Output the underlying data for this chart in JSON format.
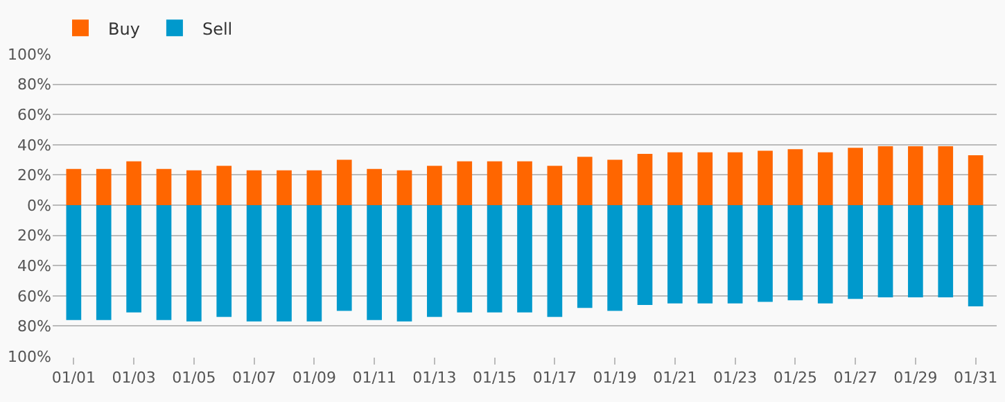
{
  "chart_data": {
    "type": "bar",
    "stacked": true,
    "legend": "top left",
    "grid": "y",
    "categories": [
      "01/01",
      null,
      "01/03",
      null,
      "01/05",
      null,
      "01/07",
      null,
      "01/09",
      null,
      "01/11",
      null,
      "01/13",
      null,
      "01/15",
      null,
      "01/17",
      null,
      "01/19",
      null,
      "01/21",
      null,
      "01/23",
      null,
      "01/25",
      null,
      "01/27",
      null,
      "01/29",
      null,
      "01/31"
    ],
    "series": [
      {
        "name": "Buy",
        "color": "#ff6600",
        "values": [
          24,
          24,
          29,
          24,
          23,
          26,
          23,
          23,
          23,
          30,
          24,
          23,
          26,
          29,
          29,
          29,
          26,
          32,
          30,
          34,
          35,
          35,
          35,
          36,
          37,
          35,
          38,
          39,
          39,
          39,
          33
        ]
      },
      {
        "name": "Sell",
        "color": "#0099cc",
        "values": [
          -76,
          -76,
          -71,
          -76,
          -77,
          -74,
          -77,
          -77,
          -77,
          -70,
          -76,
          -77,
          -74,
          -71,
          -71,
          -71,
          -74,
          -68,
          -70,
          -66,
          -65,
          -65,
          -65,
          -64,
          -63,
          -65,
          -62,
          -61,
          -61,
          -61,
          -67
        ]
      }
    ],
    "ylim": [
      -100,
      100
    ],
    "yticks": [
      {
        "value": -100,
        "label": "100%"
      },
      {
        "value": -80,
        "label": "80%"
      },
      {
        "value": -60,
        "label": "60%"
      },
      {
        "value": -40,
        "label": "40%"
      },
      {
        "value": -20,
        "label": "20%"
      },
      {
        "value": 0,
        "label": "0%"
      },
      {
        "value": 20,
        "label": "20%"
      },
      {
        "value": 40,
        "label": "40%"
      },
      {
        "value": 60,
        "label": "60%"
      },
      {
        "value": 80,
        "label": "80%"
      },
      {
        "value": 100,
        "label": "100%"
      }
    ]
  }
}
